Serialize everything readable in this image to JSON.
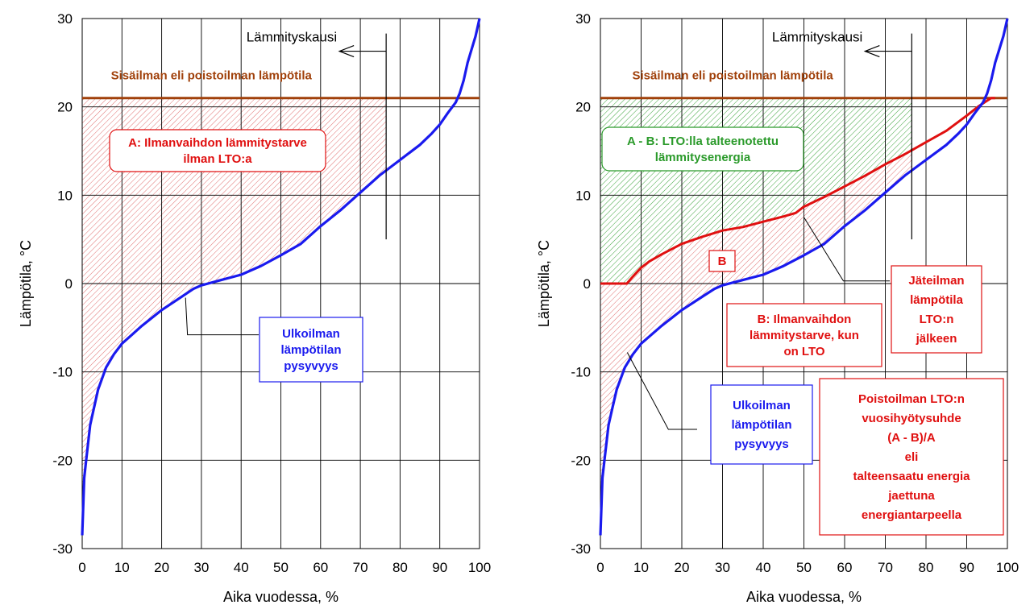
{
  "colors": {
    "outdoor": "#1a1aee",
    "exhaust": "#e01010",
    "indoor": "#a0400a",
    "hatch_red": "#e07070",
    "hatch_green": "#3aa23a",
    "ann_red": "#e01010",
    "ann_green": "#2a9a2a",
    "ann_blue": "#1a1aee",
    "ann_brown": "#a0400a"
  },
  "chart_data": [
    {
      "type": "line",
      "xlabel": "Aika vuodessa, %",
      "ylabel": "Lämpötila, °C",
      "xlim": [
        0,
        100
      ],
      "ylim": [
        -30,
        30
      ],
      "xticks": [
        "0",
        "10",
        "20",
        "30",
        "40",
        "50",
        "60",
        "70",
        "80",
        "90",
        "100"
      ],
      "yticks": [
        "-30",
        "-20",
        "-10",
        "0",
        "10",
        "20",
        "30"
      ],
      "grid": true,
      "heating_season_end_x": 76.5,
      "series": [
        {
          "role": "outdoor",
          "x": [
            0,
            0.5,
            1,
            2,
            3,
            4,
            6,
            8,
            10,
            12,
            15,
            20,
            25,
            28,
            30,
            35,
            40,
            45,
            50,
            55,
            60,
            65,
            70,
            75,
            80,
            85,
            88,
            90,
            92,
            94,
            95,
            96,
            97,
            98,
            99,
            100
          ],
          "y": [
            -28.5,
            -22,
            -20,
            -16,
            -14,
            -12,
            -9.5,
            -8,
            -6.8,
            -6,
            -4.8,
            -3,
            -1.5,
            -0.6,
            -0.2,
            0.4,
            1,
            2,
            3.2,
            4.5,
            6.5,
            8.3,
            10.3,
            12.3,
            14,
            15.7,
            17,
            18,
            19.3,
            20.5,
            21.5,
            23,
            25,
            26.5,
            28,
            30
          ]
        },
        {
          "role": "indoor",
          "name": "Sisäilman eli poistoilman lämpötila",
          "x": [
            0,
            100
          ],
          "y": [
            21,
            21
          ]
        }
      ],
      "annotations": {
        "heating_season": "Lämmityskausi",
        "need_without_hr": [
          "A: Ilmanvaihdon lämmitystarve",
          "ilman LTO:a"
        ],
        "outdoor_duration": [
          "Ulkoilman",
          "lämpötilan",
          "pysyvyys"
        ]
      }
    },
    {
      "type": "line",
      "xlabel": "Aika vuodessa, %",
      "ylabel": "Lämpötila, °C",
      "xlim": [
        0,
        100
      ],
      "ylim": [
        -30,
        30
      ],
      "xticks": [
        "0",
        "10",
        "20",
        "30",
        "40",
        "50",
        "60",
        "70",
        "80",
        "90",
        "100"
      ],
      "yticks": [
        "-30",
        "-20",
        "-10",
        "0",
        "10",
        "20",
        "30"
      ],
      "grid": true,
      "heating_season_end_x": 76.5,
      "series": [
        {
          "role": "outdoor",
          "x": [
            0,
            0.5,
            1,
            2,
            3,
            4,
            6,
            8,
            10,
            12,
            15,
            20,
            25,
            28,
            30,
            35,
            40,
            45,
            50,
            55,
            60,
            65,
            70,
            75,
            80,
            85,
            88,
            90,
            92,
            94,
            95,
            96,
            97,
            98,
            99,
            100
          ],
          "y": [
            -28.5,
            -22,
            -20,
            -16,
            -14,
            -12,
            -9.5,
            -8,
            -6.8,
            -6,
            -4.8,
            -3,
            -1.5,
            -0.6,
            -0.2,
            0.4,
            1,
            2,
            3.2,
            4.5,
            6.5,
            8.3,
            10.3,
            12.3,
            14,
            15.7,
            17,
            18,
            19.3,
            20.5,
            21.5,
            23,
            25,
            26.5,
            28,
            30
          ]
        },
        {
          "role": "exhaust",
          "x": [
            0,
            6.5,
            8,
            10,
            12,
            15,
            20,
            25,
            30,
            35,
            40,
            45,
            48,
            50,
            55,
            60,
            65,
            70,
            75,
            80,
            85,
            90,
            93,
            95,
            96,
            97
          ],
          "y": [
            0,
            0,
            0.8,
            1.8,
            2.5,
            3.3,
            4.5,
            5.3,
            6,
            6.4,
            7,
            7.6,
            8,
            8.7,
            9.8,
            11,
            12.2,
            13.5,
            14.7,
            16,
            17.3,
            19,
            20.1,
            20.7,
            21,
            21
          ]
        },
        {
          "role": "indoor",
          "name": "Sisäilman eli poistoilman lämpötila",
          "x": [
            0,
            100
          ],
          "y": [
            21,
            21
          ]
        }
      ],
      "annotations": {
        "heating_season": "Lämmityskausi",
        "recovered": [
          "A - B: LTO:lla talteenotettu",
          "lämmitysenergia"
        ],
        "b_label": "B",
        "need_with_hr": [
          "B: Ilmanvaihdon",
          "lämmitystarve, kun",
          "on LTO"
        ],
        "exhaust_after": [
          "Jäteilman",
          "lämpötila",
          "LTO:n",
          "jälkeen"
        ],
        "outdoor_duration": [
          "Ulkoilman",
          "lämpötilan",
          "pysyvyys"
        ],
        "efficiency": [
          "Poistoilman LTO:n",
          "vuosihyötysuhde",
          "(A - B)/A",
          "eli",
          "talteensaatu energia",
          "jaettuna",
          "energiantarpeella"
        ]
      }
    }
  ]
}
